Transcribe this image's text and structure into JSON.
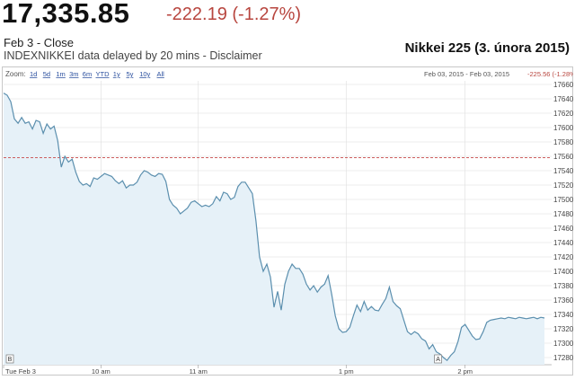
{
  "quote": {
    "price": "17,335.85",
    "change": "-222.19 (-1.27%)",
    "status": "Feb 3 - Close",
    "symbol": "INDEXNIKKEI",
    "delay_text": "data delayed by 20 mins",
    "separator": "-",
    "disclaimer": "Disclaimer"
  },
  "chart_data": {
    "type": "line",
    "title": "Nikkei 225 (3. února 2015)",
    "xlabel": "",
    "ylabel": "",
    "zoom_label": "Zoom:",
    "zoom_options": [
      "1d",
      "5d",
      "1m",
      "3m",
      "6m",
      "YTD",
      "1y",
      "5y",
      "10y",
      "All"
    ],
    "range_text": "Feb 03, 2015 - Feb 03, 2015",
    "range_change": "-225.56 (-1.28%)",
    "x_ticks": [
      "Tue Feb 3",
      "10 am",
      "11 am",
      "1 pm",
      "2 pm"
    ],
    "markers": [
      {
        "label": "B",
        "x": 0.0
      },
      {
        "label": "A",
        "x": 240.0
      }
    ],
    "y_ticks": [
      17280,
      17300,
      17320,
      17340,
      17360,
      17380,
      17400,
      17420,
      17440,
      17460,
      17480,
      17500,
      17520,
      17540,
      17560,
      17580,
      17600,
      17620,
      17640,
      17660
    ],
    "ylim": [
      17270,
      17665
    ],
    "xlim": [
      0,
      300
    ],
    "reference_line": 17558,
    "colors": {
      "line": "#5b8fae",
      "fill": "#e6f1f8",
      "reference": "#c84a4a",
      "grid": "#dddddd"
    },
    "series": [
      {
        "x": [
          0,
          2,
          4,
          6,
          8,
          10,
          12,
          14,
          16,
          18,
          20,
          22,
          24,
          26,
          28,
          30,
          32,
          34,
          36,
          38,
          40,
          42,
          44,
          46,
          48,
          50,
          52,
          54,
          56,
          58,
          60,
          62,
          64,
          66,
          68,
          70,
          72,
          74,
          76,
          78,
          80,
          82,
          84,
          86,
          88,
          90,
          92,
          94,
          96,
          98,
          100,
          102,
          104,
          106,
          108,
          110,
          112,
          114,
          116,
          118,
          120,
          122,
          124,
          126,
          128,
          130,
          132,
          134,
          136,
          138,
          140,
          142,
          144,
          146,
          148,
          150,
          152,
          154,
          156,
          158,
          160,
          162,
          164,
          166,
          168,
          170,
          172,
          174,
          176,
          178,
          180,
          182,
          184,
          186,
          188,
          190,
          192,
          194,
          196,
          198,
          200,
          202,
          204,
          206,
          208,
          210,
          212,
          214,
          216,
          218,
          220,
          222,
          224,
          226,
          228,
          230,
          232,
          234,
          236,
          238,
          240,
          242,
          244,
          246,
          248,
          250,
          252,
          254,
          256,
          258,
          260,
          262,
          264,
          266,
          268,
          270,
          272,
          274,
          276,
          278,
          280,
          282,
          284,
          286,
          288,
          290,
          292,
          294,
          296,
          298,
          300
        ],
        "values": [
          17648,
          17645,
          17636,
          17612,
          17606,
          17614,
          17606,
          17608,
          17598,
          17610,
          17608,
          17592,
          17605,
          17598,
          17602,
          17582,
          17545,
          17560,
          17552,
          17556,
          17538,
          17525,
          17520,
          17522,
          17518,
          17530,
          17528,
          17532,
          17536,
          17534,
          17532,
          17526,
          17522,
          17526,
          17516,
          17520,
          17520,
          17524,
          17534,
          17540,
          17538,
          17534,
          17532,
          17536,
          17535,
          17525,
          17500,
          17492,
          17488,
          17480,
          17484,
          17488,
          17496,
          17498,
          17494,
          17490,
          17492,
          17490,
          17494,
          17504,
          17498,
          17510,
          17508,
          17500,
          17503,
          17518,
          17524,
          17524,
          17516,
          17508,
          17470,
          17420,
          17400,
          17410,
          17392,
          17350,
          17372,
          17346,
          17382,
          17400,
          17410,
          17404,
          17404,
          17396,
          17382,
          17374,
          17380,
          17371,
          17378,
          17382,
          17394,
          17368,
          17338,
          17320,
          17315,
          17316,
          17322,
          17338,
          17353,
          17344,
          17358,
          17346,
          17351,
          17346,
          17345,
          17354,
          17362,
          17378,
          17358,
          17352,
          17348,
          17332,
          17316,
          17312,
          17316,
          17313,
          17306,
          17303,
          17292,
          17298,
          17288,
          17285,
          17280,
          17276,
          17283,
          17288,
          17302,
          17322,
          17326,
          17318,
          17310,
          17305,
          17306,
          17316,
          17329,
          17332,
          17333,
          17334,
          17335,
          17334,
          17336,
          17335,
          17334,
          17336,
          17335,
          17334,
          17335,
          17336,
          17334,
          17336,
          17335
        ]
      }
    ]
  }
}
